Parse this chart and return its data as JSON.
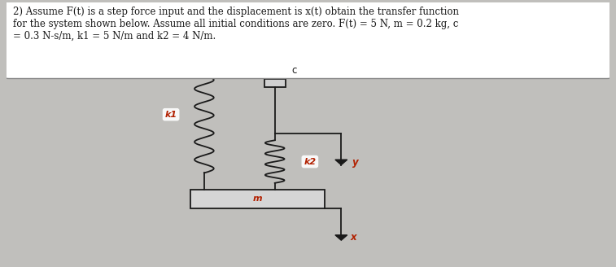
{
  "bg_color": "#c0bfbc",
  "text_color": "#1a1a1a",
  "red_color": "#b22000",
  "title_text": "2) Assume F(t) is a step force input and the displacement is x(t) obtain the transfer function\nfor the system shown below. Assume all initial conditions are zero. F(t) = 5 N, m = 0.2 kg, c\n= 0.3 N-s/m, k1 = 5 N/m and k2 = 4 N/m.",
  "title_fontsize": 8.5,
  "fig_width": 7.57,
  "fig_height": 3.28,
  "dpi": 100,
  "k1_label": "k1",
  "k2_label": "k2",
  "c_label": "c",
  "m_label": "m",
  "x_label": "x",
  "y_label": "y"
}
